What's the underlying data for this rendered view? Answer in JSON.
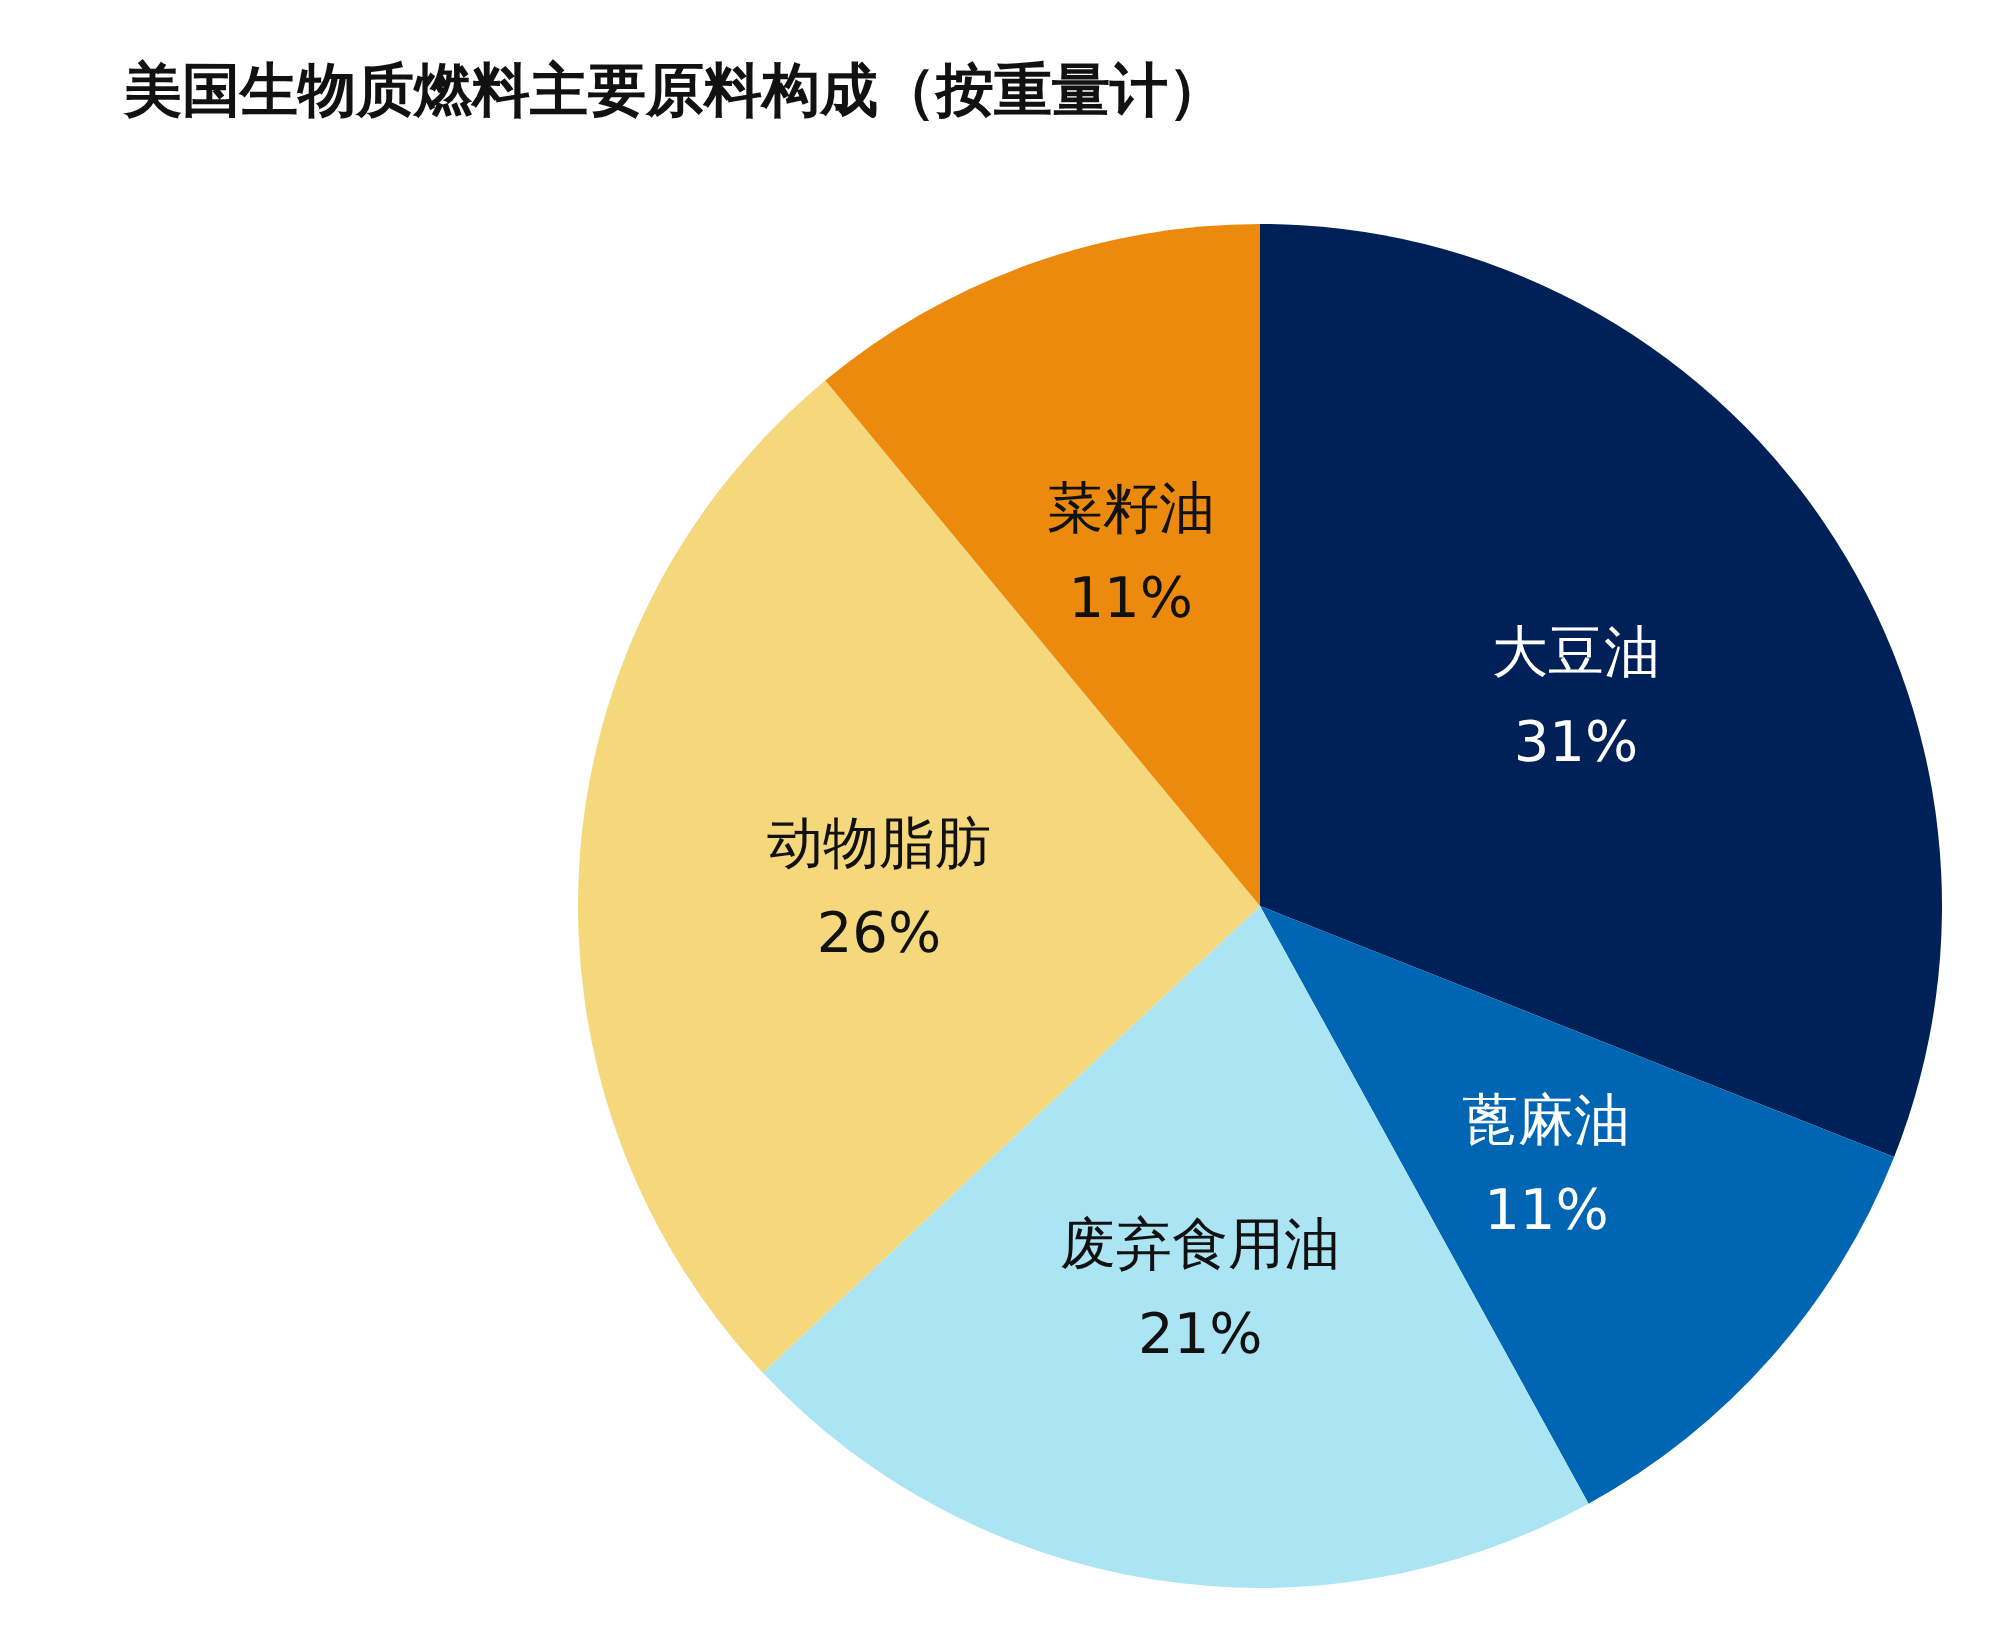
{
  "chart_data": {
    "type": "pie",
    "title": "美国生物质燃料主要原料构成（按重量计）",
    "categories": [
      "大豆油",
      "蓖麻油",
      "废弃食用油",
      "动物脂肪",
      "菜籽油"
    ],
    "values": [
      31,
      11,
      21,
      26,
      11
    ],
    "value_labels": [
      "31%",
      "11%",
      "21%",
      "26%",
      "11%"
    ],
    "colors": [
      "#002157",
      "#0066b3",
      "#abe4f3",
      "#f4d87b",
      "#eb8a0c"
    ]
  }
}
